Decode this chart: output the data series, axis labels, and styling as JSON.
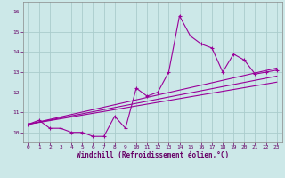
{
  "xlabel": "Windchill (Refroidissement éolien,°C)",
  "bg_color": "#cce8e8",
  "grid_color": "#aacccc",
  "line_color": "#990099",
  "xlim": [
    -0.5,
    23.5
  ],
  "ylim": [
    9.5,
    16.5
  ],
  "yticks": [
    10,
    11,
    12,
    13,
    14,
    15,
    16
  ],
  "xticks": [
    0,
    1,
    2,
    3,
    4,
    5,
    6,
    7,
    8,
    9,
    10,
    11,
    12,
    13,
    14,
    15,
    16,
    17,
    18,
    19,
    20,
    21,
    22,
    23
  ],
  "series1_x": [
    0,
    1,
    2,
    3,
    4,
    5,
    6,
    7,
    8,
    9,
    10,
    11,
    12,
    13,
    14,
    15,
    16,
    17,
    18,
    19,
    20,
    21,
    22,
    23
  ],
  "series1_y": [
    10.4,
    10.6,
    10.2,
    10.2,
    10.0,
    10.0,
    9.8,
    9.8,
    10.8,
    10.2,
    12.2,
    11.8,
    12.0,
    13.0,
    15.8,
    14.8,
    14.4,
    14.2,
    13.0,
    13.9,
    13.6,
    12.9,
    13.0,
    13.1
  ],
  "line1_x": [
    0,
    23
  ],
  "line1_y": [
    10.4,
    13.2
  ],
  "line2_x": [
    0,
    23
  ],
  "line2_y": [
    10.4,
    12.8
  ],
  "line3_x": [
    0,
    23
  ],
  "line3_y": [
    10.4,
    12.5
  ]
}
